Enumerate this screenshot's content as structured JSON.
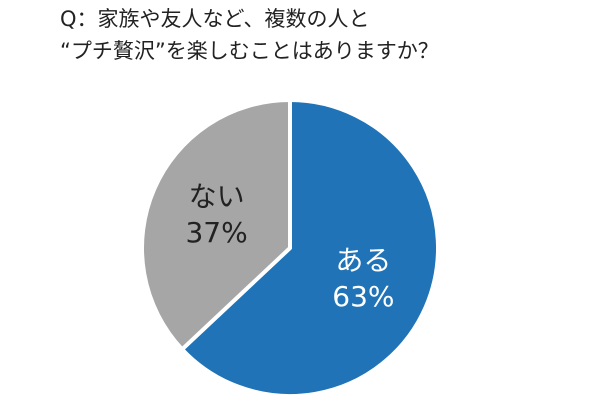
{
  "chart_data": {
    "type": "pie",
    "title": [
      "Q：家族や友人など、複数の人と",
      "“プチ贅沢”を楽しむことはありますか？"
    ],
    "categories": [
      "ある",
      "ない"
    ],
    "values": [
      63,
      37
    ],
    "value_labels": [
      "63%",
      "37%"
    ],
    "colors": [
      "#1f73b6",
      "#a6a6a6"
    ]
  }
}
